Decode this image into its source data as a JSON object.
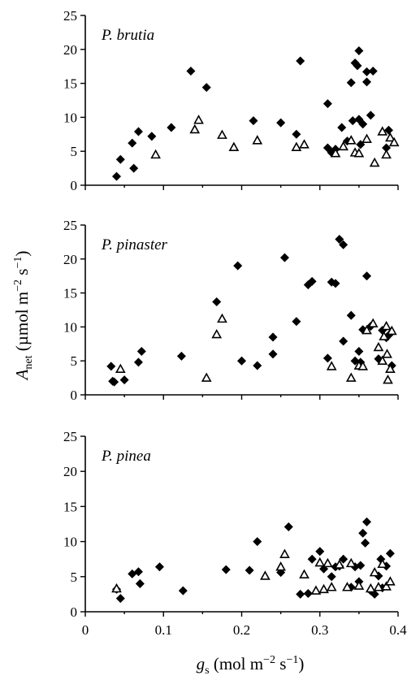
{
  "chart_data": [
    {
      "type": "scatter",
      "panel_label": "P. brutia",
      "xlim": [
        0,
        0.4
      ],
      "ylim": [
        0,
        25
      ],
      "yticks": [
        "0",
        "5",
        "10",
        "15",
        "20",
        "25"
      ],
      "series": [
        {
          "marker": "filled-diamond",
          "points": [
            [
              0.04,
              1.3
            ],
            [
              0.045,
              3.8
            ],
            [
              0.06,
              6.2
            ],
            [
              0.062,
              2.5
            ],
            [
              0.068,
              7.9
            ],
            [
              0.085,
              7.2
            ],
            [
              0.11,
              8.5
            ],
            [
              0.135,
              16.8
            ],
            [
              0.155,
              14.4
            ],
            [
              0.215,
              9.5
            ],
            [
              0.25,
              9.2
            ],
            [
              0.27,
              7.5
            ],
            [
              0.275,
              18.3
            ],
            [
              0.31,
              12.0
            ],
            [
              0.31,
              5.5
            ],
            [
              0.315,
              4.8
            ],
            [
              0.32,
              5.3
            ],
            [
              0.328,
              8.5
            ],
            [
              0.335,
              6.5
            ],
            [
              0.34,
              15.1
            ],
            [
              0.342,
              9.5
            ],
            [
              0.345,
              18.0
            ],
            [
              0.348,
              17.6
            ],
            [
              0.35,
              19.8
            ],
            [
              0.35,
              9.7
            ],
            [
              0.352,
              6.0
            ],
            [
              0.355,
              9.0
            ],
            [
              0.36,
              16.7
            ],
            [
              0.36,
              15.2
            ],
            [
              0.365,
              10.3
            ],
            [
              0.368,
              16.8
            ],
            [
              0.385,
              5.5
            ],
            [
              0.388,
              8.1
            ]
          ]
        },
        {
          "marker": "open-triangle",
          "points": [
            [
              0.09,
              4.5
            ],
            [
              0.14,
              8.2
            ],
            [
              0.145,
              9.6
            ],
            [
              0.175,
              7.4
            ],
            [
              0.19,
              5.6
            ],
            [
              0.22,
              6.6
            ],
            [
              0.27,
              5.6
            ],
            [
              0.28,
              6.0
            ],
            [
              0.32,
              4.7
            ],
            [
              0.33,
              5.7
            ],
            [
              0.34,
              6.6
            ],
            [
              0.345,
              4.8
            ],
            [
              0.35,
              4.7
            ],
            [
              0.36,
              6.8
            ],
            [
              0.37,
              3.3
            ],
            [
              0.38,
              7.9
            ],
            [
              0.385,
              4.5
            ],
            [
              0.39,
              7.0
            ],
            [
              0.395,
              6.3
            ]
          ]
        }
      ]
    },
    {
      "type": "scatter",
      "panel_label": "P. pinaster",
      "xlim": [
        0,
        0.4
      ],
      "ylim": [
        0,
        25
      ],
      "yticks": [
        "0",
        "5",
        "10",
        "15",
        "20",
        "25"
      ],
      "series": [
        {
          "marker": "filled-diamond",
          "points": [
            [
              0.033,
              4.2
            ],
            [
              0.035,
              2.0
            ],
            [
              0.037,
              1.9
            ],
            [
              0.05,
              2.2
            ],
            [
              0.068,
              4.8
            ],
            [
              0.072,
              6.4
            ],
            [
              0.123,
              5.7
            ],
            [
              0.168,
              13.7
            ],
            [
              0.195,
              19.0
            ],
            [
              0.2,
              5.0
            ],
            [
              0.22,
              4.3
            ],
            [
              0.24,
              6.0
            ],
            [
              0.24,
              8.5
            ],
            [
              0.255,
              20.2
            ],
            [
              0.27,
              10.8
            ],
            [
              0.285,
              16.2
            ],
            [
              0.29,
              16.7
            ],
            [
              0.31,
              5.4
            ],
            [
              0.315,
              16.6
            ],
            [
              0.32,
              16.4
            ],
            [
              0.325,
              22.9
            ],
            [
              0.33,
              22.1
            ],
            [
              0.33,
              7.9
            ],
            [
              0.34,
              11.7
            ],
            [
              0.345,
              5.0
            ],
            [
              0.35,
              6.4
            ],
            [
              0.352,
              4.8
            ],
            [
              0.355,
              9.6
            ],
            [
              0.36,
              17.5
            ],
            [
              0.365,
              10.1
            ],
            [
              0.375,
              5.3
            ],
            [
              0.38,
              9.5
            ],
            [
              0.385,
              8.4
            ],
            [
              0.39,
              9.0
            ],
            [
              0.392,
              4.3
            ]
          ]
        },
        {
          "marker": "open-triangle",
          "points": [
            [
              0.045,
              3.8
            ],
            [
              0.155,
              2.5
            ],
            [
              0.168,
              8.9
            ],
            [
              0.175,
              11.2
            ],
            [
              0.315,
              4.2
            ],
            [
              0.34,
              2.5
            ],
            [
              0.35,
              4.3
            ],
            [
              0.355,
              4.2
            ],
            [
              0.36,
              9.5
            ],
            [
              0.368,
              10.5
            ],
            [
              0.375,
              7.0
            ],
            [
              0.38,
              5.0
            ],
            [
              0.382,
              8.6
            ],
            [
              0.385,
              10.1
            ],
            [
              0.386,
              6.0
            ],
            [
              0.387,
              2.2
            ],
            [
              0.39,
              3.8
            ],
            [
              0.392,
              9.4
            ]
          ]
        }
      ]
    },
    {
      "type": "scatter",
      "panel_label": "P. pinea",
      "xlim": [
        0,
        0.4
      ],
      "ylim": [
        0,
        25
      ],
      "yticks": [
        "0",
        "5",
        "10",
        "15",
        "20",
        "25"
      ],
      "xticks": [
        "0",
        "0.1",
        "0.2",
        "0.3",
        "0.4"
      ],
      "series": [
        {
          "marker": "filled-diamond",
          "points": [
            [
              0.04,
              3.2
            ],
            [
              0.045,
              1.9
            ],
            [
              0.06,
              5.4
            ],
            [
              0.068,
              5.7
            ],
            [
              0.07,
              4.0
            ],
            [
              0.095,
              6.4
            ],
            [
              0.125,
              3.0
            ],
            [
              0.18,
              6.0
            ],
            [
              0.21,
              5.9
            ],
            [
              0.22,
              10.0
            ],
            [
              0.25,
              5.6
            ],
            [
              0.26,
              12.1
            ],
            [
              0.275,
              2.5
            ],
            [
              0.285,
              2.6
            ],
            [
              0.29,
              7.5
            ],
            [
              0.3,
              8.6
            ],
            [
              0.305,
              6.1
            ],
            [
              0.315,
              5.0
            ],
            [
              0.32,
              6.4
            ],
            [
              0.325,
              6.5
            ],
            [
              0.33,
              7.5
            ],
            [
              0.34,
              3.5
            ],
            [
              0.345,
              6.4
            ],
            [
              0.35,
              4.3
            ],
            [
              0.352,
              6.6
            ],
            [
              0.355,
              11.2
            ],
            [
              0.358,
              9.8
            ],
            [
              0.36,
              12.8
            ],
            [
              0.365,
              3.0
            ],
            [
              0.37,
              2.5
            ],
            [
              0.375,
              5.1
            ],
            [
              0.378,
              7.5
            ],
            [
              0.38,
              3.4
            ],
            [
              0.385,
              6.5
            ],
            [
              0.39,
              8.3
            ]
          ]
        },
        {
          "marker": "open-triangle",
          "points": [
            [
              0.04,
              3.3
            ],
            [
              0.23,
              5.1
            ],
            [
              0.25,
              6.4
            ],
            [
              0.255,
              8.2
            ],
            [
              0.28,
              5.3
            ],
            [
              0.295,
              3.0
            ],
            [
              0.3,
              7.0
            ],
            [
              0.305,
              3.2
            ],
            [
              0.31,
              6.9
            ],
            [
              0.315,
              3.5
            ],
            [
              0.325,
              6.7
            ],
            [
              0.335,
              3.5
            ],
            [
              0.34,
              6.9
            ],
            [
              0.35,
              3.7
            ],
            [
              0.365,
              3.3
            ],
            [
              0.37,
              5.6
            ],
            [
              0.375,
              3.5
            ],
            [
              0.38,
              6.8
            ],
            [
              0.385,
              3.6
            ],
            [
              0.39,
              4.3
            ]
          ]
        }
      ]
    }
  ],
  "y_axis_title": {
    "main": "A",
    "sub": "net",
    "rest": " (µmol m",
    "sup1": "−2",
    "mid": " s",
    "sup2": "−1",
    "close": ")"
  },
  "x_axis_title": {
    "main": "g",
    "sub": "s",
    "rest": " (mol  m",
    "sup1": "−2",
    "mid": " s",
    "sup2": "−1",
    "close": ")"
  }
}
